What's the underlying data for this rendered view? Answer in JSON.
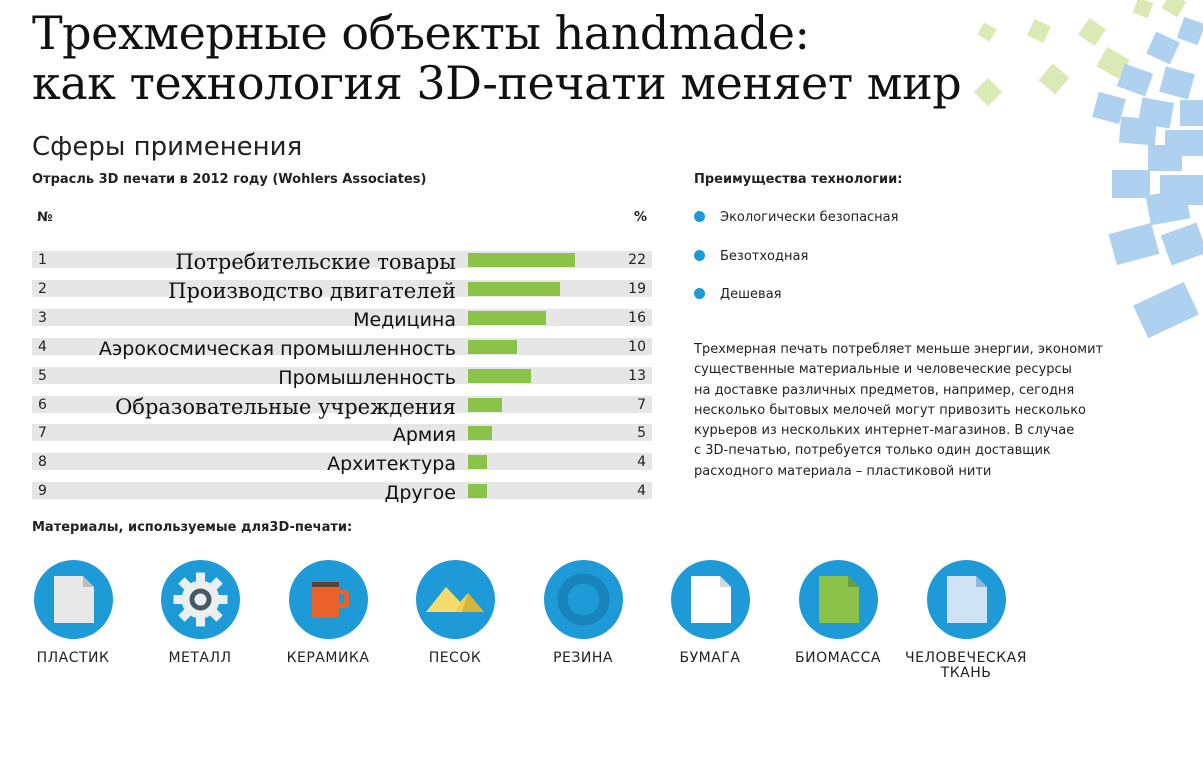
{
  "title": {
    "line1": "Трехмерные объекты handmade:",
    "line2": "как технология 3D-печати меняет мир"
  },
  "section_title": "Сферы применения",
  "chart_data": {
    "type": "bar",
    "title": "Отрасль 3D печати в 2012 году (Wohlers Associates)",
    "column_headers": {
      "number": "№",
      "value": "%"
    },
    "numbers": [
      "1",
      "2",
      "3",
      "4",
      "5",
      "6",
      "7",
      "8",
      "9"
    ],
    "categories": [
      "Потребительские товары",
      "Производство двигателей",
      "Медицина",
      "Аэрокосмическая промышленность",
      "Промышленность",
      "Образовательные учреждения",
      "Армия",
      "Архитектура",
      "Другое"
    ],
    "values": [
      22,
      19,
      16,
      10,
      13,
      7,
      5,
      4,
      4
    ],
    "bar_color": "#8bc34a",
    "row_color": "#e6e6e6",
    "grid": false
  },
  "advantages": {
    "title": "Преимущества технологии:",
    "items": [
      "Экологически безопасная",
      "Безотходная",
      "Дешевая"
    ],
    "bullet_color": "#1e9ad6"
  },
  "paragraph": [
    "Трехмерная печать потребляет меньше энергии, экономит",
    "существенные материальные и человеческие ресурсы",
    "на доставке различных предметов, например, сегодня",
    "несколько бытовых мелочей могут привозить несколько",
    "курьеров из нескольких интернет-магазинов. В случае",
    "с 3D-печатью, потребуется только один доставщик",
    "расходного материала – пластиковой нити"
  ],
  "materials": {
    "title": "Материалы, используемые для3D-печати:",
    "circle_color": "#1e9ad6",
    "items": [
      {
        "label": "ПЛАСТИК",
        "icon": "document-icon"
      },
      {
        "label": "МЕТАЛЛ",
        "icon": "gear-icon"
      },
      {
        "label": "КЕРАМИКА",
        "icon": "mug-icon"
      },
      {
        "label": "ПЕСОК",
        "icon": "sand-pile-icon"
      },
      {
        "label": "РЕЗИНА",
        "icon": "ring-icon"
      },
      {
        "label": "БУМАГА",
        "icon": "paper-sheet-icon"
      },
      {
        "label": "БИОМАССА",
        "icon": "green-sheet-icon"
      },
      {
        "label": "ЧЕЛОВЕЧЕСКАЯ ТКАНЬ",
        "icon": "tissue-sheet-icon"
      }
    ]
  }
}
